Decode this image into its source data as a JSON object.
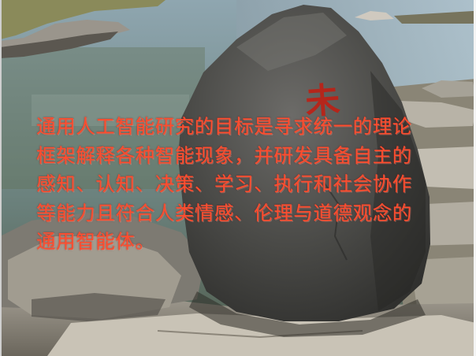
{
  "slide": {
    "body_text": "通用人工智能研究的目标是寻求统一的理论框架解释各种智能现象，并研发具备自主的感知、认知、决策、学习、执行和社会协作等能力且符合人类情感、伦理与道德观念的通用智能体。",
    "rock_inscription": "未"
  },
  "colors": {
    "text": "#ff4d2e",
    "rock": "#4a4a48",
    "water": "#7a8f96"
  }
}
